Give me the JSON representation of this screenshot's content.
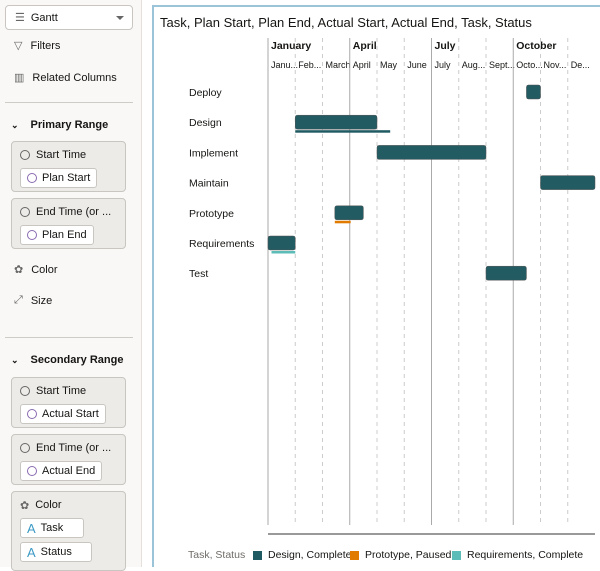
{
  "left_panel": {
    "chart_type": "Gantt",
    "filters": "Filters",
    "related_columns": "Related Columns",
    "primary": {
      "title": "Primary Range",
      "start_label": "Start Time",
      "start_value": "Plan Start",
      "end_label": "End Time (or ...",
      "end_value": "Plan End",
      "color": "Color",
      "size": "Size"
    },
    "secondary": {
      "title": "Secondary Range",
      "start_label": "Start Time",
      "start_value": "Actual Start",
      "end_label": "End Time (or ...",
      "end_value": "Actual End",
      "color": "Color",
      "color_values": [
        "Task",
        "Status"
      ]
    }
  },
  "chart_data": {
    "type": "gantt",
    "title": "Task, Plan Start, Plan End, Actual Start, Actual End, Task, Status",
    "quarters": [
      "January",
      "April",
      "July",
      "October"
    ],
    "months": [
      "Janu...",
      "Feb...",
      "March",
      "April",
      "May",
      "June",
      "July",
      "Aug...",
      "Sept...",
      "Octo...",
      "Nov...",
      "De..."
    ],
    "tasks": [
      {
        "name": "Deploy",
        "plan": [
          "10-16",
          "10-31"
        ]
      },
      {
        "name": "Design",
        "plan": [
          "02-01",
          "04-30"
        ],
        "actual": [
          "02-01",
          "05-15"
        ],
        "color": "#1f5a62"
      },
      {
        "name": "Implement",
        "plan": [
          "05-01",
          "08-31"
        ]
      },
      {
        "name": "Maintain",
        "plan": [
          "11-01",
          "12-31"
        ]
      },
      {
        "name": "Prototype",
        "plan": [
          "03-15",
          "04-15"
        ],
        "actual": [
          "03-15",
          "04-01"
        ],
        "color": "#e07b00"
      },
      {
        "name": "Requirements",
        "plan": [
          "01-01",
          "01-31"
        ],
        "actual": [
          "01-05",
          "01-31"
        ],
        "color": "#5bbcb8"
      },
      {
        "name": "Test",
        "plan": [
          "09-01",
          "10-15"
        ]
      }
    ],
    "bar_color": "#235b62",
    "legend": {
      "title": "Task, Status",
      "items": [
        {
          "label": "Design, Complete",
          "color": "#1f5a62"
        },
        {
          "label": "Prototype, Paused",
          "color": "#e07b00"
        },
        {
          "label": "Requirements, Complete",
          "color": "#5bbcb8"
        }
      ]
    }
  }
}
